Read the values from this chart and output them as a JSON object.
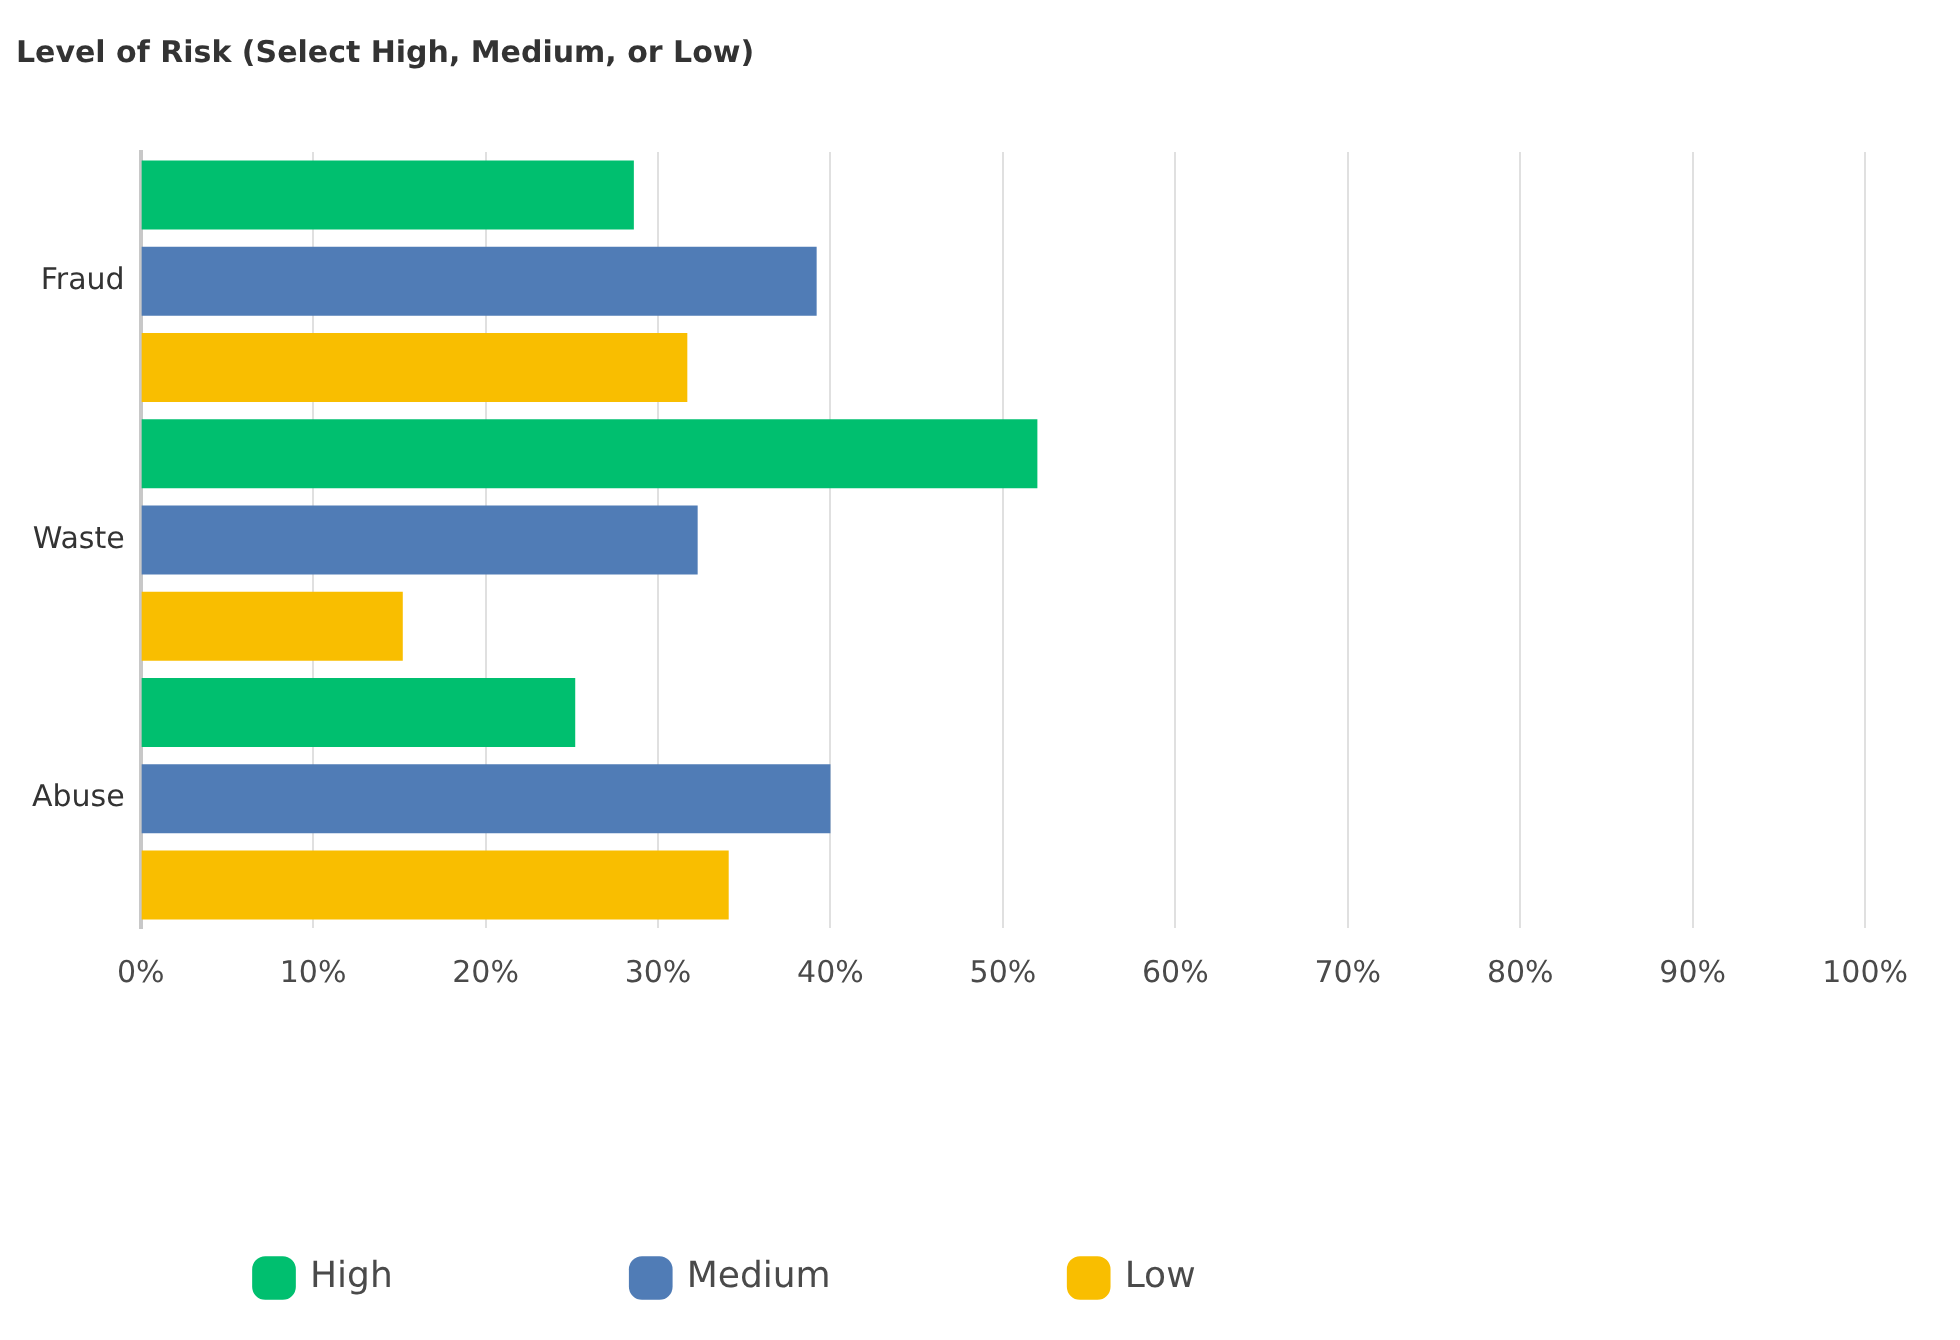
{
  "chart_data": {
    "type": "bar",
    "orientation": "horizontal",
    "title": "Level of Risk (Select High, Medium, or Low)",
    "categories": [
      "Fraud",
      "Waste",
      "Abuse"
    ],
    "series": [
      {
        "name": "High",
        "color": "#00bf6f",
        "values": [
          28.6,
          52.0,
          25.2
        ]
      },
      {
        "name": "Medium",
        "color": "#507cb6",
        "values": [
          39.2,
          32.3,
          40.0
        ]
      },
      {
        "name": "Low",
        "color": "#f9be00",
        "values": [
          31.7,
          15.2,
          34.1
        ]
      }
    ],
    "xlim": [
      0,
      100
    ],
    "xticks": [
      {
        "value": 0,
        "label": "0%"
      },
      {
        "value": 10,
        "label": "10%"
      },
      {
        "value": 20,
        "label": "20%"
      },
      {
        "value": 30,
        "label": "30%"
      },
      {
        "value": 40,
        "label": "40%"
      },
      {
        "value": 50,
        "label": "50%"
      },
      {
        "value": 60,
        "label": "60%"
      },
      {
        "value": 70,
        "label": "70%"
      },
      {
        "value": 80,
        "label": "80%"
      },
      {
        "value": 90,
        "label": "90%"
      },
      {
        "value": 100,
        "label": "100%"
      }
    ],
    "grid": "x",
    "legend": "bottom left"
  }
}
